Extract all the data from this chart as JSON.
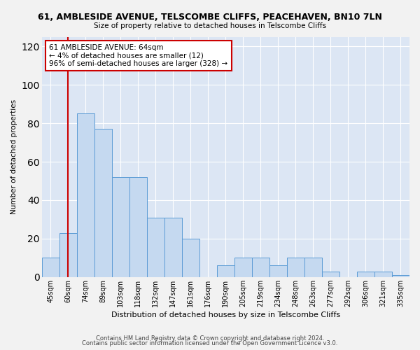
{
  "title": "61, AMBLESIDE AVENUE, TELSCOMBE CLIFFS, PEACEHAVEN, BN10 7LN",
  "subtitle": "Size of property relative to detached houses in Telscombe Cliffs",
  "xlabel": "Distribution of detached houses by size in Telscombe Cliffs",
  "ylabel": "Number of detached properties",
  "categories": [
    "45sqm",
    "60sqm",
    "74sqm",
    "89sqm",
    "103sqm",
    "118sqm",
    "132sqm",
    "147sqm",
    "161sqm",
    "176sqm",
    "190sqm",
    "205sqm",
    "219sqm",
    "234sqm",
    "248sqm",
    "263sqm",
    "277sqm",
    "292sqm",
    "306sqm",
    "321sqm",
    "335sqm"
  ],
  "values": [
    10,
    23,
    85,
    77,
    52,
    52,
    31,
    31,
    20,
    0,
    6,
    10,
    10,
    6,
    10,
    10,
    3,
    0,
    3,
    3,
    1
  ],
  "bar_color": "#c5d9f0",
  "bar_edge_color": "#5b9bd5",
  "background_color": "#dce6f4",
  "grid_color": "#ffffff",
  "red_line_x": 1,
  "annotation_text": "61 AMBLESIDE AVENUE: 64sqm\n← 4% of detached houses are smaller (12)\n96% of semi-detached houses are larger (328) →",
  "annotation_box_edge": "#cc0000",
  "ylim": [
    0,
    125
  ],
  "yticks": [
    0,
    20,
    40,
    60,
    80,
    100,
    120
  ],
  "footer_line1": "Contains HM Land Registry data © Crown copyright and database right 2024.",
  "footer_line2": "Contains public sector information licensed under the Open Government Licence v3.0."
}
